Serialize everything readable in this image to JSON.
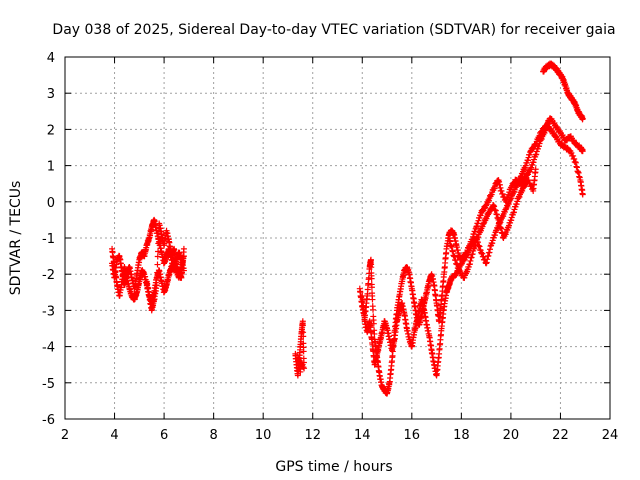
{
  "chart_data": {
    "type": "scatter",
    "title": "Day 038 of 2025, Sidereal Day-to-day VTEC variation (SDTVAR) for receiver gaia",
    "xlabel": "GPS time / hours",
    "ylabel": "SDTVAR / TECUs",
    "xlim": [
      2,
      24
    ],
    "ylim": [
      -6,
      4
    ],
    "xticks": [
      2,
      4,
      6,
      8,
      10,
      12,
      14,
      16,
      18,
      20,
      22,
      24
    ],
    "yticks": [
      -6,
      -5,
      -4,
      -3,
      -2,
      -1,
      0,
      1,
      2,
      3,
      4
    ],
    "grid": true,
    "legend": "none",
    "marker": "plus",
    "color": "#ff0000",
    "series": [
      {
        "segments": [
          [
            [
              3.9,
              -1.3
            ],
            [
              4.0,
              -1.8
            ],
            [
              4.1,
              -2.3
            ],
            [
              4.2,
              -2.6
            ],
            [
              4.3,
              -2.2
            ],
            [
              4.4,
              -1.8
            ],
            [
              4.5,
              -2.1
            ],
            [
              4.6,
              -2.4
            ],
            [
              4.7,
              -2.6
            ],
            [
              4.8,
              -2.7
            ],
            [
              4.9,
              -2.5
            ],
            [
              5.0,
              -2.2
            ],
            [
              5.1,
              -1.9
            ],
            [
              5.2,
              -2.0
            ],
            [
              5.3,
              -2.3
            ],
            [
              5.4,
              -2.6
            ],
            [
              5.5,
              -2.8
            ],
            [
              5.6,
              -2.5
            ],
            [
              5.7,
              -2.1
            ],
            [
              5.8,
              -1.9
            ],
            [
              5.9,
              -2.2
            ],
            [
              6.0,
              -2.5
            ],
            [
              6.1,
              -2.3
            ],
            [
              6.2,
              -2.0
            ],
            [
              6.3,
              -1.8
            ],
            [
              6.4,
              -1.7
            ],
            [
              6.5,
              -1.9
            ],
            [
              6.6,
              -2.1
            ],
            [
              6.7,
              -1.8
            ],
            [
              6.8,
              -1.5
            ]
          ],
          [
            [
              3.9,
              -1.7
            ],
            [
              4.0,
              -2.1
            ],
            [
              4.1,
              -1.6
            ],
            [
              4.2,
              -1.5
            ],
            [
              4.3,
              -1.9
            ],
            [
              4.4,
              -2.3
            ],
            [
              4.5,
              -2.0
            ],
            [
              4.6,
              -1.8
            ],
            [
              4.7,
              -2.1
            ],
            [
              4.8,
              -2.4
            ],
            [
              4.9,
              -2.0
            ],
            [
              5.0,
              -1.6
            ],
            [
              5.1,
              -1.4
            ],
            [
              5.2,
              -1.5
            ],
            [
              5.3,
              -1.2
            ],
            [
              5.4,
              -1.0
            ],
            [
              5.5,
              -0.7
            ],
            [
              5.6,
              -0.5
            ],
            [
              5.7,
              -0.8
            ],
            [
              5.8,
              -1.1
            ],
            [
              5.9,
              -1.4
            ],
            [
              6.0,
              -1.7
            ],
            [
              6.1,
              -1.5
            ],
            [
              6.2,
              -1.3
            ],
            [
              6.3,
              -1.6
            ],
            [
              6.4,
              -1.9
            ],
            [
              6.5,
              -1.6
            ],
            [
              6.6,
              -1.4
            ],
            [
              6.7,
              -1.6
            ],
            [
              6.8,
              -1.9
            ]
          ],
          [
            [
              5.3,
              -2.2
            ],
            [
              5.4,
              -2.6
            ],
            [
              5.5,
              -3.0
            ],
            [
              5.6,
              -2.7
            ],
            [
              5.7,
              -2.3
            ],
            [
              5.8,
              -0.6
            ],
            [
              5.9,
              -0.9
            ],
            [
              6.0,
              -1.2
            ],
            [
              6.1,
              -0.8
            ],
            [
              6.2,
              -1.1
            ],
            [
              6.3,
              -1.5
            ],
            [
              6.4,
              -1.3
            ],
            [
              6.5,
              -1.8
            ],
            [
              6.6,
              -2.0
            ],
            [
              6.7,
              -2.1
            ],
            [
              6.8,
              -1.3
            ]
          ]
        ]
      },
      {
        "segments": [
          [
            [
              11.3,
              -4.2
            ],
            [
              11.35,
              -4.5
            ],
            [
              11.4,
              -4.8
            ],
            [
              11.45,
              -4.4
            ],
            [
              11.5,
              -4.0
            ],
            [
              11.55,
              -3.6
            ],
            [
              11.6,
              -3.3
            ],
            [
              11.65,
              -4.6
            ],
            [
              11.4,
              -4.3
            ],
            [
              11.5,
              -4.7
            ]
          ]
        ]
      },
      {
        "segments": [
          [
            [
              13.9,
              -2.4
            ],
            [
              14.0,
              -2.9
            ],
            [
              14.1,
              -3.2
            ],
            [
              14.2,
              -2.6
            ],
            [
              14.3,
              -1.8
            ],
            [
              14.35,
              -1.6
            ],
            [
              14.4,
              -2.6
            ],
            [
              14.5,
              -3.8
            ],
            [
              14.6,
              -4.3
            ],
            [
              14.7,
              -4.8
            ],
            [
              14.8,
              -5.1
            ],
            [
              14.9,
              -5.2
            ],
            [
              15.0,
              -5.3
            ],
            [
              15.1,
              -5.0
            ],
            [
              15.2,
              -4.4
            ],
            [
              15.3,
              -3.6
            ],
            [
              15.4,
              -3.0
            ],
            [
              15.5,
              -2.6
            ],
            [
              15.6,
              -2.2
            ],
            [
              15.7,
              -1.9
            ],
            [
              15.8,
              -1.8
            ],
            [
              15.9,
              -2.0
            ],
            [
              16.0,
              -2.4
            ],
            [
              16.1,
              -2.8
            ],
            [
              16.2,
              -3.2
            ],
            [
              16.3,
              -3.4
            ],
            [
              16.4,
              -3.1
            ],
            [
              16.5,
              -2.8
            ],
            [
              16.6,
              -2.5
            ],
            [
              16.7,
              -2.2
            ],
            [
              16.8,
              -2.0
            ],
            [
              16.9,
              -2.3
            ],
            [
              17.0,
              -2.8
            ],
            [
              17.1,
              -3.3
            ],
            [
              17.2,
              -2.7
            ],
            [
              17.3,
              -2.0
            ],
            [
              17.4,
              -1.3
            ],
            [
              17.5,
              -0.9
            ],
            [
              17.6,
              -0.8
            ],
            [
              17.7,
              -0.9
            ],
            [
              17.8,
              -1.2
            ],
            [
              17.9,
              -1.5
            ],
            [
              18.0,
              -1.6
            ],
            [
              18.2,
              -1.4
            ],
            [
              18.4,
              -1.1
            ],
            [
              18.6,
              -0.7
            ],
            [
              18.8,
              -0.3
            ],
            [
              19.0,
              -0.1
            ],
            [
              19.2,
              0.2
            ],
            [
              19.4,
              0.5
            ],
            [
              19.5,
              0.6
            ],
            [
              19.6,
              0.3
            ],
            [
              19.8,
              0.0
            ],
            [
              20.0,
              0.4
            ],
            [
              20.2,
              0.6
            ],
            [
              20.4,
              0.5
            ],
            [
              20.6,
              0.7
            ],
            [
              20.8,
              0.9
            ],
            [
              21.0,
              1.3
            ],
            [
              21.2,
              1.7
            ],
            [
              21.4,
              2.0
            ],
            [
              21.5,
              2.2
            ],
            [
              21.6,
              2.3
            ],
            [
              21.8,
              2.1
            ],
            [
              22.0,
              1.9
            ],
            [
              22.2,
              1.7
            ],
            [
              22.4,
              1.8
            ],
            [
              22.6,
              1.6
            ],
            [
              22.8,
              1.5
            ],
            [
              22.9,
              1.4
            ]
          ],
          [
            [
              14.0,
              -2.6
            ],
            [
              14.1,
              -3.3
            ],
            [
              14.2,
              -3.6
            ],
            [
              14.3,
              -3.3
            ],
            [
              14.4,
              -3.9
            ],
            [
              14.5,
              -4.5
            ],
            [
              14.6,
              -4.2
            ],
            [
              14.7,
              -3.9
            ],
            [
              14.8,
              -3.6
            ],
            [
              14.9,
              -3.3
            ],
            [
              15.0,
              -3.5
            ],
            [
              15.1,
              -3.8
            ],
            [
              15.2,
              -4.1
            ],
            [
              15.3,
              -3.8
            ],
            [
              15.4,
              -3.3
            ],
            [
              15.5,
              -3.0
            ],
            [
              15.6,
              -2.8
            ],
            [
              15.7,
              -3.1
            ],
            [
              15.8,
              -3.5
            ],
            [
              15.9,
              -3.8
            ],
            [
              16.0,
              -4.0
            ],
            [
              16.1,
              -3.6
            ],
            [
              16.2,
              -3.3
            ],
            [
              16.3,
              -3.0
            ],
            [
              16.4,
              -2.7
            ],
            [
              16.5,
              -3.0
            ],
            [
              16.6,
              -3.4
            ],
            [
              16.7,
              -3.7
            ],
            [
              16.8,
              -4.1
            ],
            [
              16.9,
              -4.5
            ],
            [
              17.0,
              -4.8
            ],
            [
              17.1,
              -4.2
            ],
            [
              17.2,
              -3.5
            ],
            [
              17.3,
              -2.9
            ],
            [
              17.4,
              -2.5
            ],
            [
              17.5,
              -2.3
            ],
            [
              17.6,
              -2.1
            ],
            [
              17.8,
              -2.0
            ],
            [
              18.0,
              -1.7
            ],
            [
              18.2,
              -1.5
            ],
            [
              18.4,
              -1.2
            ],
            [
              18.6,
              -1.0
            ],
            [
              18.8,
              -1.4
            ],
            [
              19.0,
              -1.7
            ],
            [
              19.2,
              -1.2
            ],
            [
              19.4,
              -0.8
            ],
            [
              19.6,
              -0.5
            ],
            [
              19.8,
              -0.2
            ],
            [
              20.0,
              0.1
            ],
            [
              20.2,
              0.4
            ],
            [
              20.4,
              0.7
            ],
            [
              20.6,
              1.0
            ],
            [
              20.8,
              1.4
            ],
            [
              21.0,
              1.6
            ],
            [
              21.2,
              1.9
            ],
            [
              21.4,
              2.1
            ],
            [
              21.6,
              2.0
            ],
            [
              21.8,
              1.8
            ],
            [
              22.0,
              1.6
            ],
            [
              22.2,
              1.5
            ],
            [
              22.4,
              1.4
            ],
            [
              22.6,
              1.1
            ],
            [
              22.8,
              0.6
            ],
            [
              22.9,
              0.2
            ]
          ],
          [
            [
              17.5,
              -1.0
            ],
            [
              17.7,
              -1.5
            ],
            [
              17.9,
              -1.9
            ],
            [
              18.1,
              -2.1
            ],
            [
              18.3,
              -1.8
            ],
            [
              18.5,
              -1.3
            ],
            [
              18.7,
              -0.9
            ],
            [
              18.9,
              -0.6
            ],
            [
              19.1,
              -0.3
            ],
            [
              19.3,
              -0.1
            ],
            [
              19.5,
              -0.5
            ],
            [
              19.7,
              -1.0
            ],
            [
              19.9,
              -0.7
            ],
            [
              20.1,
              -0.3
            ],
            [
              20.3,
              0.1
            ],
            [
              20.5,
              0.4
            ],
            [
              20.7,
              0.6
            ],
            [
              20.9,
              0.3
            ],
            [
              21.0,
              0.9
            ]
          ],
          [
            [
              21.3,
              3.6
            ],
            [
              21.4,
              3.7
            ],
            [
              21.5,
              3.75
            ],
            [
              21.6,
              3.8
            ],
            [
              21.7,
              3.75
            ],
            [
              21.8,
              3.7
            ],
            [
              21.9,
              3.6
            ],
            [
              22.0,
              3.5
            ],
            [
              22.1,
              3.4
            ],
            [
              22.2,
              3.2
            ],
            [
              22.3,
              3.0
            ],
            [
              22.4,
              2.9
            ],
            [
              22.5,
              2.8
            ],
            [
              22.6,
              2.7
            ],
            [
              22.7,
              2.5
            ],
            [
              22.8,
              2.4
            ],
            [
              22.9,
              2.3
            ]
          ]
        ]
      }
    ]
  }
}
